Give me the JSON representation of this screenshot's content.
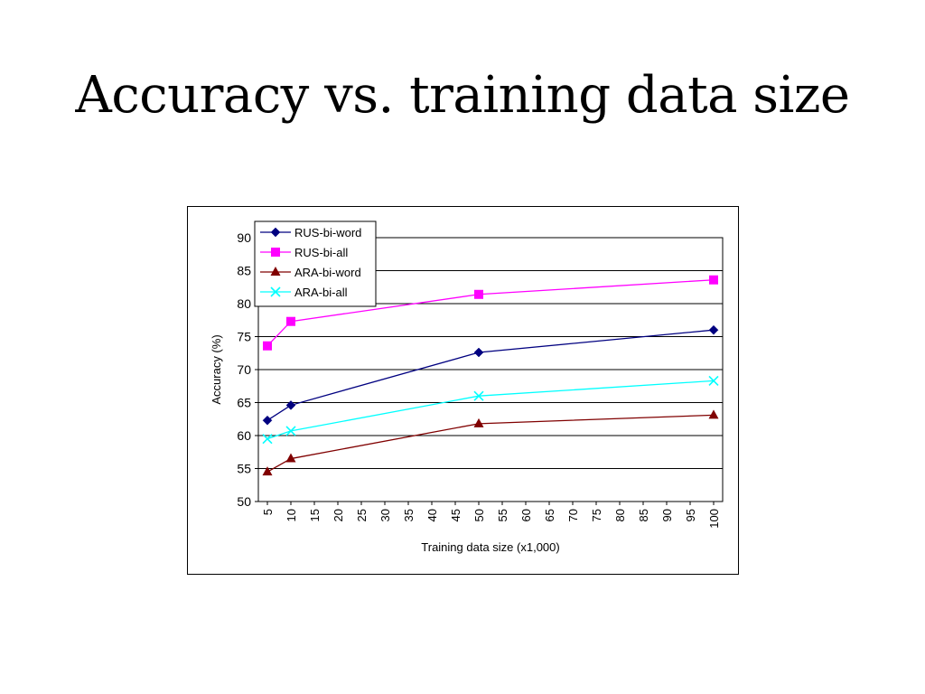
{
  "slide": {
    "title": "Accuracy vs. training data size"
  },
  "chart_data": {
    "type": "line",
    "title": "",
    "xlabel": "Training data size (x1,000)",
    "ylabel": "Accuracy (%)",
    "x_ticks": [
      5,
      10,
      15,
      20,
      25,
      30,
      35,
      40,
      45,
      50,
      55,
      60,
      65,
      70,
      75,
      80,
      85,
      90,
      95,
      100
    ],
    "xlim": [
      5,
      100
    ],
    "y_ticks": [
      50,
      55,
      60,
      65,
      70,
      75,
      80,
      85,
      90
    ],
    "ylim": [
      50,
      90
    ],
    "grid": "horizontal",
    "legend_position": "top-left",
    "x": [
      5,
      10,
      50,
      100
    ],
    "series": [
      {
        "name": "RUS-bi-word",
        "values": [
          62.3,
          64.6,
          72.6,
          76.0
        ],
        "color": "#000080",
        "marker": "diamond"
      },
      {
        "name": "RUS-bi-all",
        "values": [
          73.6,
          77.3,
          81.4,
          83.6
        ],
        "color": "#ff00ff",
        "marker": "square"
      },
      {
        "name": "ARA-bi-word",
        "values": [
          54.5,
          56.5,
          61.8,
          63.1
        ],
        "color": "#800000",
        "marker": "triangle"
      },
      {
        "name": "ARA-bi-all",
        "values": [
          59.5,
          60.7,
          66.0,
          68.3
        ],
        "color": "#00ffff",
        "marker": "x"
      }
    ]
  }
}
